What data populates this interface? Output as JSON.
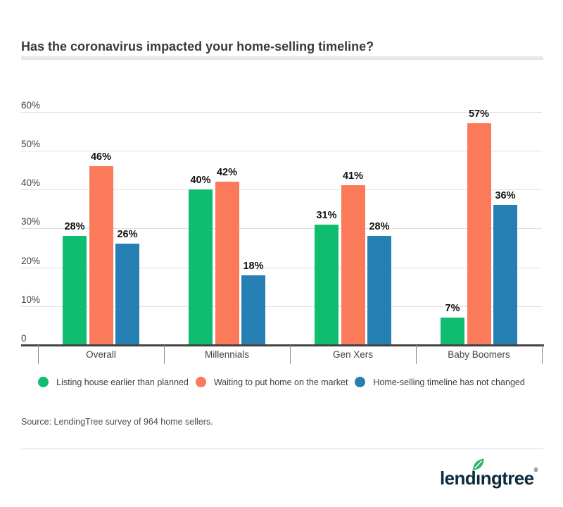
{
  "page": {
    "title": "Has the coronavirus impacted your home-selling timeline?",
    "source_note": "Source: LendingTree survey of 964 home sellers.",
    "brand": {
      "logo_text": "lendingtree",
      "registered_mark": "®",
      "logo_color": "#0e2a3d",
      "leaf_color": "#2cb567"
    }
  },
  "chart_data": {
    "type": "bar",
    "title": "Has the coronavirus impacted your home-selling timeline?",
    "categories": [
      "Overall",
      "Millennials",
      "Gen Xers",
      "Baby Boomers"
    ],
    "series": [
      {
        "name": "Listing house earlier than planned",
        "color": "#0fbd70",
        "values": [
          28,
          40,
          31,
          7
        ]
      },
      {
        "name": "Waiting to put home on the market",
        "color": "#fb7a59",
        "values": [
          46,
          42,
          41,
          57
        ]
      },
      {
        "name": "Home-selling timeline has not changed",
        "color": "#2780b4",
        "values": [
          26,
          18,
          28,
          36
        ]
      }
    ],
    "value_labels": [
      [
        "28%",
        "40%",
        "31%",
        "7%"
      ],
      [
        "46%",
        "42%",
        "41%",
        "57%"
      ],
      [
        "26%",
        "18%",
        "28%",
        "36%"
      ]
    ],
    "value_suffix": "%",
    "y_ticks": [
      "60%",
      "50%",
      "40%",
      "30%",
      "20%",
      "10%",
      "0"
    ],
    "y_tick_values": [
      60,
      50,
      40,
      30,
      20,
      10,
      0
    ],
    "ylim": [
      0,
      60
    ],
    "grid": true,
    "legend_position": "bottom",
    "colors": {
      "gridline": "#e0e0e0",
      "axis": "#424242",
      "tick_label": "#424242",
      "value_label": "#111111"
    }
  }
}
